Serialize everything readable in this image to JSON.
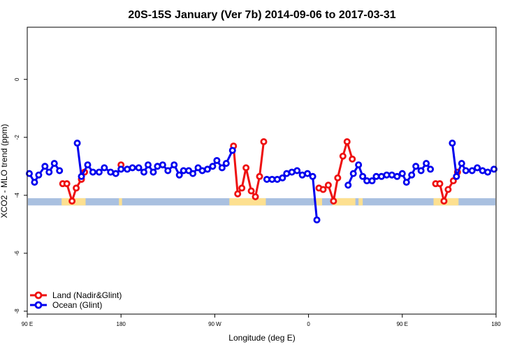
{
  "chart_data": {
    "type": "line",
    "title": "20S-15S January (Ver 7b)   2014-09-06 to 2017-03-31",
    "xlabel": "Longitude (deg E)",
    "ylabel": "XCO2 - MLO trend (ppm)",
    "xlim": [
      90,
      540
    ],
    "ylim": [
      -8.1,
      1.8
    ],
    "x_ticks": [
      {
        "value": 90,
        "label": "90 E"
      },
      {
        "value": 180,
        "label": "180"
      },
      {
        "value": 270,
        "label": "90 W"
      },
      {
        "value": 360,
        "label": "0"
      },
      {
        "value": 450,
        "label": "90 E"
      },
      {
        "value": 540,
        "label": "180"
      }
    ],
    "y_ticks": [
      {
        "value": 0,
        "label": "0"
      },
      {
        "value": -2,
        "label": "-2"
      },
      {
        "value": -4,
        "label": "-4"
      },
      {
        "value": -6,
        "label": "-6"
      },
      {
        "value": -8,
        "label": "-8"
      }
    ],
    "legend_position": "bottom-left",
    "grid": false,
    "series": [
      {
        "name": "Land (Nadir&Glint)",
        "color": "#ee1111",
        "segments": [
          [
            [
              124,
              -3.6
            ],
            [
              128,
              -3.6
            ],
            [
              133,
              -4.2
            ],
            [
              137,
              -3.75
            ],
            [
              142,
              -3.45
            ],
            [
              145,
              -3.2
            ]
          ],
          [
            [
              180,
              -2.95
            ]
          ],
          [
            [
              288,
              -2.3
            ],
            [
              292,
              -3.95
            ],
            [
              296,
              -3.75
            ],
            [
              300,
              -3.05
            ],
            [
              305,
              -3.85
            ],
            [
              309,
              -4.05
            ],
            [
              313,
              -3.35
            ],
            [
              317,
              -2.15
            ]
          ],
          [
            [
              370,
              -3.75
            ],
            [
              374,
              -3.8
            ],
            [
              379,
              -3.65
            ],
            [
              384,
              -4.2
            ],
            [
              388,
              -3.4
            ],
            [
              393,
              -2.65
            ],
            [
              397,
              -2.15
            ],
            [
              402,
              -2.75
            ]
          ],
          [
            [
              482,
              -3.6
            ],
            [
              486,
              -3.6
            ],
            [
              490,
              -4.2
            ],
            [
              494,
              -3.8
            ],
            [
              499,
              -3.5
            ],
            [
              503,
              -3.2
            ]
          ]
        ]
      },
      {
        "name": "Ocean (Glint)",
        "color": "#0000ee",
        "segments": [
          [
            [
              92,
              -3.25
            ],
            [
              97,
              -3.55
            ],
            [
              101,
              -3.3
            ],
            [
              107,
              -3.0
            ],
            [
              111,
              -3.2
            ],
            [
              116,
              -2.9
            ],
            [
              121,
              -3.15
            ]
          ],
          [
            [
              138,
              -2.2
            ],
            [
              142,
              -3.35
            ],
            [
              148,
              -2.95
            ],
            [
              153,
              -3.2
            ],
            [
              159,
              -3.2
            ],
            [
              164,
              -3.05
            ],
            [
              170,
              -3.2
            ],
            [
              175,
              -3.25
            ],
            [
              180,
              -3.1
            ],
            [
              186,
              -3.1
            ],
            [
              191,
              -3.05
            ],
            [
              197,
              -3.05
            ],
            [
              202,
              -3.2
            ],
            [
              206,
              -2.95
            ],
            [
              211,
              -3.2
            ],
            [
              215,
              -3.0
            ],
            [
              220,
              -2.95
            ],
            [
              225,
              -3.15
            ],
            [
              231,
              -2.95
            ],
            [
              236,
              -3.3
            ],
            [
              240,
              -3.15
            ],
            [
              245,
              -3.15
            ],
            [
              249,
              -3.25
            ],
            [
              254,
              -3.05
            ],
            [
              258,
              -3.15
            ],
            [
              263,
              -3.1
            ],
            [
              268,
              -3.0
            ],
            [
              272,
              -2.8
            ],
            [
              277,
              -3.05
            ],
            [
              281,
              -2.9
            ],
            [
              287,
              -2.45
            ]
          ],
          [
            [
              320,
              -3.45
            ],
            [
              325,
              -3.45
            ],
            [
              330,
              -3.45
            ],
            [
              335,
              -3.4
            ],
            [
              339,
              -3.25
            ],
            [
              344,
              -3.2
            ],
            [
              349,
              -3.15
            ],
            [
              354,
              -3.3
            ],
            [
              359,
              -3.25
            ],
            [
              364,
              -3.35
            ],
            [
              368,
              -4.85
            ]
          ],
          [
            [
              398,
              -3.65
            ],
            [
              403,
              -3.25
            ],
            [
              408,
              -2.95
            ],
            [
              412,
              -3.35
            ],
            [
              416,
              -3.5
            ],
            [
              421,
              -3.5
            ],
            [
              425,
              -3.35
            ],
            [
              430,
              -3.35
            ],
            [
              435,
              -3.3
            ],
            [
              440,
              -3.3
            ],
            [
              445,
              -3.35
            ],
            [
              450,
              -3.25
            ],
            [
              454,
              -3.55
            ],
            [
              459,
              -3.3
            ],
            [
              463,
              -3.0
            ],
            [
              468,
              -3.15
            ],
            [
              473,
              -2.9
            ],
            [
              477,
              -3.1
            ]
          ],
          [
            [
              498,
              -2.2
            ],
            [
              502,
              -3.35
            ],
            [
              507,
              -2.9
            ],
            [
              511,
              -3.15
            ],
            [
              517,
              -3.15
            ],
            [
              522,
              -3.05
            ],
            [
              527,
              -3.15
            ],
            [
              532,
              -3.2
            ],
            [
              538,
              -3.1
            ]
          ]
        ]
      }
    ],
    "surface_strip": {
      "y_range": [
        -4.35,
        -4.1
      ],
      "ocean_color": "#a9c0e0",
      "land_color": "#fde090",
      "land_x_ranges": [
        [
          123,
          146
        ],
        [
          178,
          181
        ],
        [
          284,
          319
        ],
        [
          366,
          373
        ],
        [
          383,
          405
        ],
        [
          408,
          412
        ],
        [
          480,
          504
        ]
      ]
    }
  }
}
